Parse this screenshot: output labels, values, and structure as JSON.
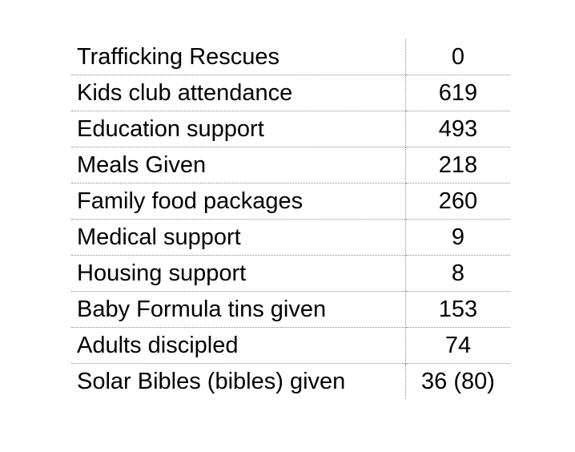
{
  "rows": [
    {
      "label": "Trafficking Rescues",
      "value": "0"
    },
    {
      "label": "Kids club attendance",
      "value": "619"
    },
    {
      "label": "Education support",
      "value": "493"
    },
    {
      "label": "Meals Given",
      "value": "218"
    },
    {
      "label": "Family food packages",
      "value": "260"
    },
    {
      "label": "Medical support",
      "value": "9"
    },
    {
      "label": "Housing support",
      "value": "8"
    },
    {
      "label": "Baby Formula tins given",
      "value": "153"
    },
    {
      "label": "Adults discipled",
      "value": "74"
    },
    {
      "label": "Solar Bibles (bibles) given",
      "value": "36 (80)"
    }
  ]
}
